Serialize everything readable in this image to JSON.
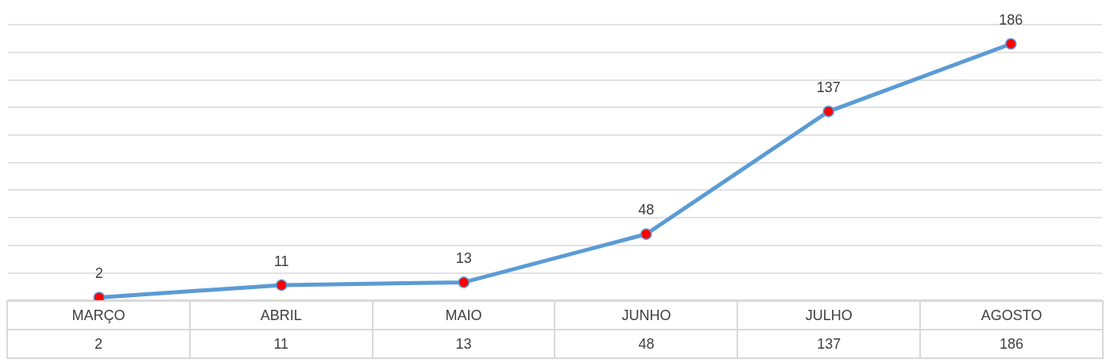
{
  "chart_data": {
    "type": "line",
    "categories": [
      "MARÇO",
      "ABRIL",
      "MAIO",
      "JUNHO",
      "JULHO",
      "AGOSTO"
    ],
    "series": [
      {
        "color": "#5b9bd5",
        "values": [
          2,
          11,
          13,
          48,
          137,
          186
        ]
      }
    ],
    "annotations": [
      "2",
      "11",
      "13",
      "48",
      "137",
      "186"
    ],
    "ylim": [
      0,
      200
    ],
    "yticks": [
      {
        "value": 0,
        "label": null
      },
      {
        "value": 20,
        "label": null
      },
      {
        "value": 40,
        "label": null
      },
      {
        "value": 60,
        "label": null
      },
      {
        "value": 80,
        "label": null
      },
      {
        "value": 100,
        "label": null
      },
      {
        "value": 120,
        "label": null
      },
      {
        "value": 140,
        "label": null
      },
      {
        "value": 160,
        "label": null
      },
      {
        "value": 180,
        "label": null
      },
      {
        "value": 200,
        "label": null
      }
    ],
    "grid": "y",
    "tick_labels": false,
    "marker": "circle",
    "data_labels": true
  }
}
